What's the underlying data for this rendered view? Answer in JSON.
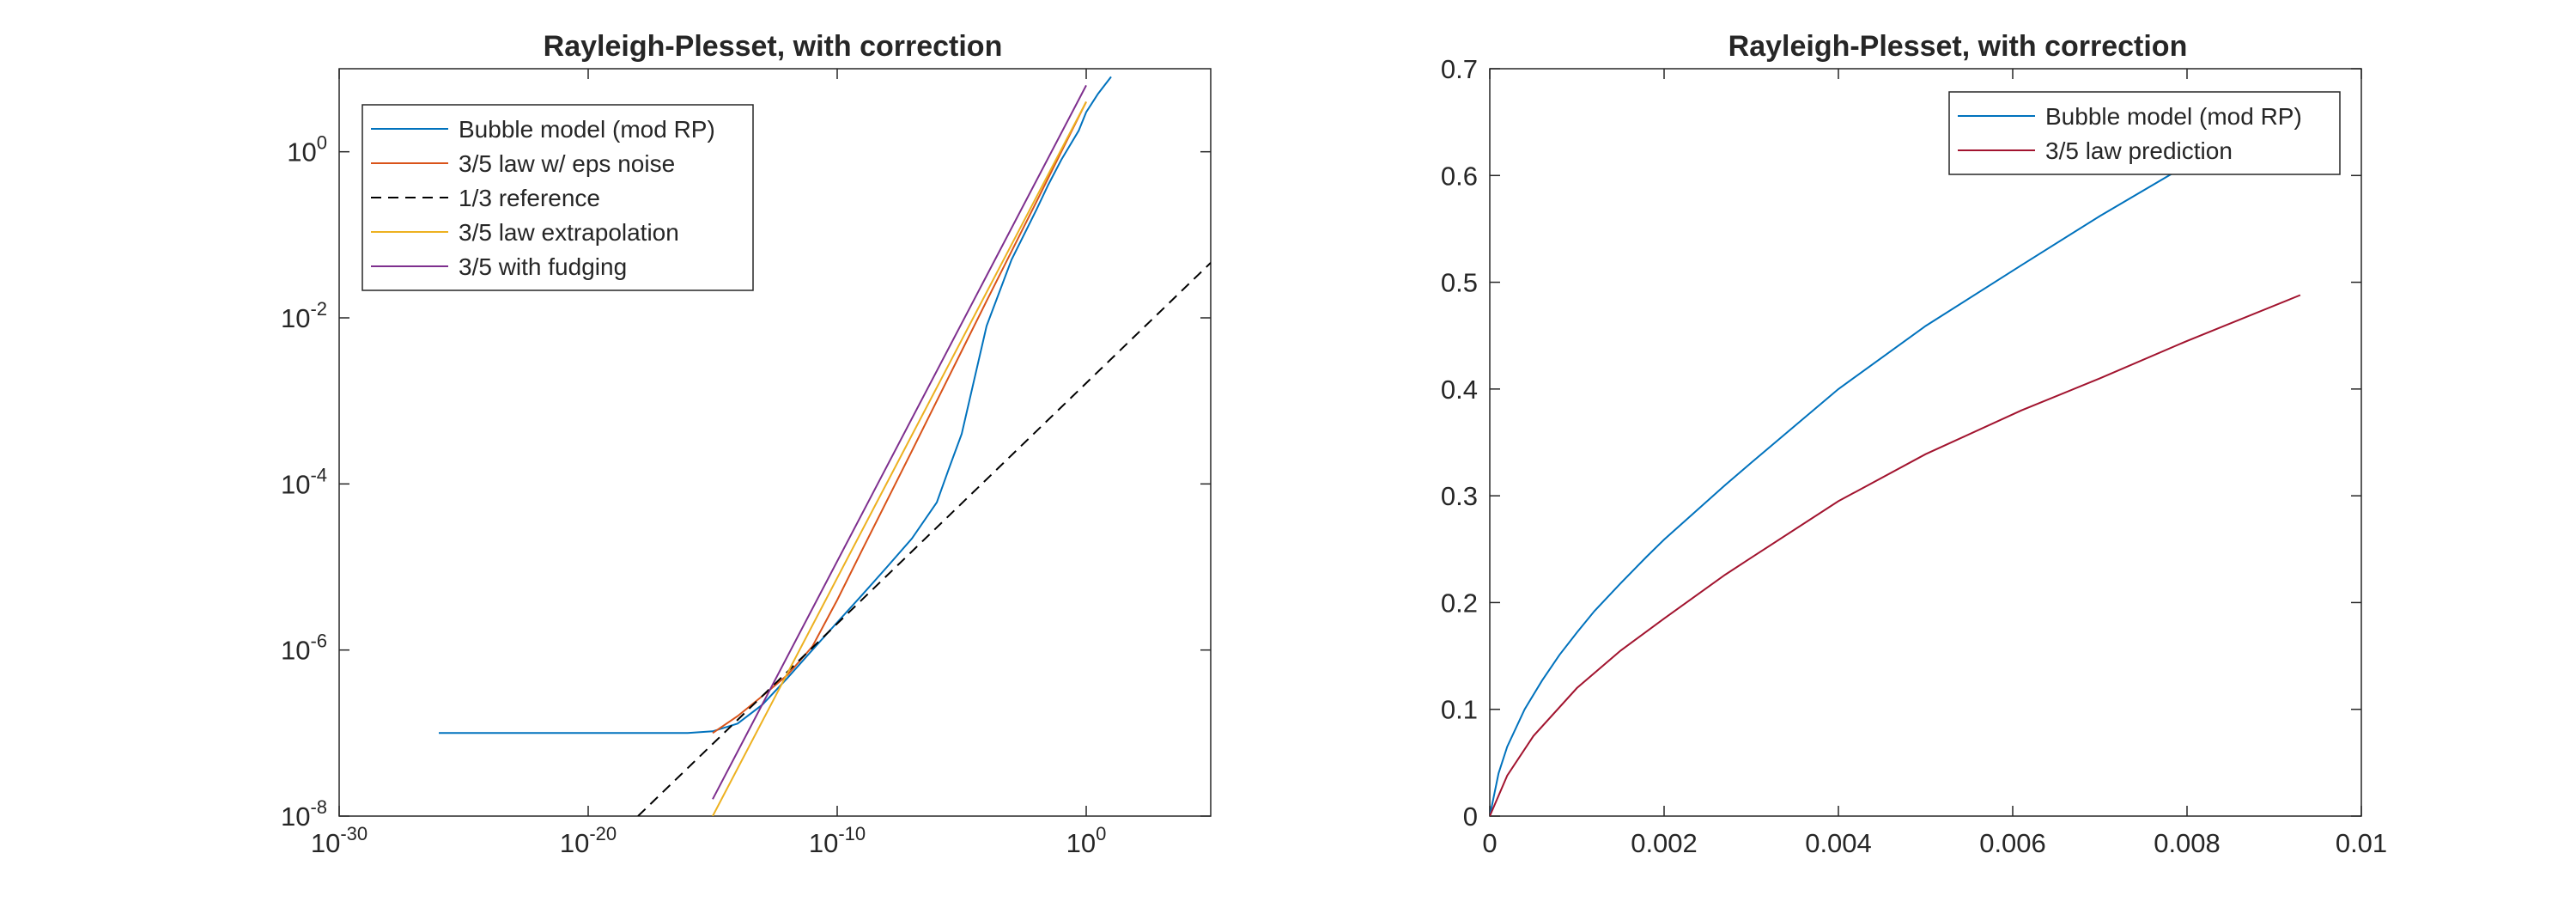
{
  "chart_data": [
    {
      "type": "line",
      "title": "Rayleigh-Plesset, with correction",
      "xscale": "log",
      "yscale": "log",
      "xlim": [
        1e-30,
        100000.0
      ],
      "ylim": [
        1e-08,
        10
      ],
      "xticks": [
        {
          "value": 1e-30,
          "base": "10",
          "exp": "-30"
        },
        {
          "value": 1e-20,
          "base": "10",
          "exp": "-20"
        },
        {
          "value": 1e-10,
          "base": "10",
          "exp": "-10"
        },
        {
          "value": 1,
          "base": "10",
          "exp": "0"
        }
      ],
      "yticks": [
        {
          "value": 1e-08,
          "base": "10",
          "exp": "-8"
        },
        {
          "value": 1e-06,
          "base": "10",
          "exp": "-6"
        },
        {
          "value": 0.0001,
          "base": "10",
          "exp": "-4"
        },
        {
          "value": 0.01,
          "base": "10",
          "exp": "-2"
        },
        {
          "value": 1,
          "base": "10",
          "exp": "0"
        }
      ],
      "legend_position": "top-left",
      "grid": false,
      "series": [
        {
          "name": "Bubble model (mod RP)",
          "color": "#0072BD",
          "dash": "",
          "x": [
            1e-26,
            1e-20,
            1e-16,
            1e-15,
            1e-14,
            1e-13,
            1e-12,
            1e-11,
            1e-10,
            1e-09,
            1e-08,
            1e-07,
            1e-06,
            3e-06,
            1e-05,
            0.0001,
            0.001,
            0.01,
            0.03,
            0.1,
            0.5,
            1,
            3,
            10
          ],
          "y": [
            1e-07,
            1e-07,
            1e-07,
            1.05e-07,
            1.3e-07,
            2.2e-07,
            4.6e-07,
            1e-06,
            2.15e-06,
            4.6e-06,
            1e-05,
            2.2e-05,
            6e-05,
            0.00015,
            0.0004,
            0.008,
            0.05,
            0.2,
            0.4,
            0.8,
            1.8,
            3,
            5,
            8
          ]
        },
        {
          "name": "3/5 law w/ eps noise",
          "color": "#D95319",
          "dash": "",
          "x": [
            1e-15,
            1e-14,
            1e-13,
            1e-12,
            1e-11,
            1e-10,
            1e-09,
            1e-08,
            1e-07,
            1e-06,
            1e-05,
            0.0001,
            0.001,
            0.01,
            0.1,
            1
          ],
          "y": [
            1e-07,
            1.6e-07,
            2.8e-07,
            5e-07,
            1.1e-06,
            4e-06,
            1.6e-05,
            6.3e-05,
            0.00025,
            0.001,
            0.004,
            0.016,
            0.063,
            0.25,
            1,
            4
          ]
        },
        {
          "name": "1/3 reference",
          "color": "#000000",
          "dash": "12,8",
          "x": [
            1e-18,
            100000.0
          ],
          "y": [
            1e-08,
            0.046
          ]
        },
        {
          "name": "3/5 law extrapolation",
          "color": "#EDB120",
          "dash": "",
          "x": [
            1e-15,
            1
          ],
          "y": [
            1e-08,
            4
          ]
        },
        {
          "name": "3/5 with fudging",
          "color": "#7E2F8E",
          "dash": "",
          "x": [
            1e-15,
            1
          ],
          "y": [
            1.6e-08,
            6.3
          ]
        }
      ]
    },
    {
      "type": "line",
      "title": "Rayleigh-Plesset, with correction",
      "xscale": "linear",
      "yscale": "linear",
      "xlim": [
        0,
        0.01
      ],
      "ylim": [
        0,
        0.7
      ],
      "xticks": [
        {
          "value": 0,
          "label": "0"
        },
        {
          "value": 0.002,
          "label": "0.002"
        },
        {
          "value": 0.004,
          "label": "0.004"
        },
        {
          "value": 0.006,
          "label": "0.006"
        },
        {
          "value": 0.008,
          "label": "0.008"
        },
        {
          "value": 0.01,
          "label": "0.01"
        }
      ],
      "yticks": [
        {
          "value": 0,
          "label": "0"
        },
        {
          "value": 0.1,
          "label": "0.1"
        },
        {
          "value": 0.2,
          "label": "0.2"
        },
        {
          "value": 0.3,
          "label": "0.3"
        },
        {
          "value": 0.4,
          "label": "0.4"
        },
        {
          "value": 0.5,
          "label": "0.5"
        },
        {
          "value": 0.6,
          "label": "0.6"
        },
        {
          "value": 0.7,
          "label": "0.7"
        }
      ],
      "legend_position": "top-right",
      "grid": false,
      "series": [
        {
          "name": "Bubble model (mod RP)",
          "color": "#0072BD",
          "dash": "",
          "x": [
            0,
            0.0001,
            0.0002,
            0.0004,
            0.0006,
            0.0008,
            0.001,
            0.0012,
            0.0015,
            0.0018,
            0.002,
            0.0027,
            0.003,
            0.004,
            0.005,
            0.0061,
            0.007,
            0.008,
            0.0083
          ],
          "y": [
            0,
            0.04,
            0.065,
            0.1,
            0.127,
            0.151,
            0.172,
            0.192,
            0.218,
            0.243,
            0.259,
            0.31,
            0.331,
            0.4,
            0.459,
            0.516,
            0.562,
            0.61,
            0.623
          ]
        },
        {
          "name": "3/5 law prediction",
          "color": "#A2142F",
          "dash": "",
          "x": [
            0,
            0.0002,
            0.0005,
            0.001,
            0.0015,
            0.002,
            0.0027,
            0.003,
            0.004,
            0.005,
            0.0061,
            0.007,
            0.008,
            0.0093
          ],
          "y": [
            0,
            0.038,
            0.075,
            0.12,
            0.155,
            0.185,
            0.226,
            0.242,
            0.295,
            0.339,
            0.38,
            0.41,
            0.445,
            0.488
          ]
        }
      ]
    }
  ]
}
